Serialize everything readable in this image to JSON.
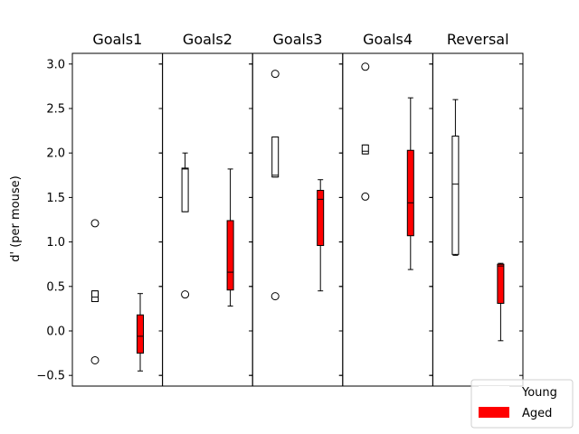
{
  "chart_data": {
    "type": "box",
    "ylabel": "d' (per mouse)",
    "ylim": [
      -0.62,
      3.12
    ],
    "yticks": [
      -0.5,
      0.0,
      0.5,
      1.0,
      1.5,
      2.0,
      2.5,
      3.0
    ],
    "ytick_labels": [
      "−0.5",
      "0.0",
      "0.5",
      "1.0",
      "1.5",
      "2.0",
      "2.5",
      "3.0"
    ],
    "legend": {
      "placement": "lower-right",
      "entries": [
        {
          "label": "Young",
          "color": "#ffffff"
        },
        {
          "label": "Aged",
          "color": "#ff0000"
        }
      ]
    },
    "panels": [
      {
        "title": "Goals1",
        "boxes": [
          {
            "group": "Young",
            "whislo": 0.33,
            "q1": 0.33,
            "med": 0.38,
            "q3": 0.45,
            "whishi": 0.45,
            "fliers": [
              1.21,
              -0.33
            ]
          },
          {
            "group": "Aged",
            "whislo": -0.45,
            "q1": -0.25,
            "med": -0.06,
            "q3": 0.18,
            "whishi": 0.42,
            "fliers": []
          }
        ]
      },
      {
        "title": "Goals2",
        "boxes": [
          {
            "group": "Young",
            "whislo": 1.34,
            "q1": 1.34,
            "med": 1.82,
            "q3": 1.83,
            "whishi": 2.0,
            "fliers": [
              0.41
            ]
          },
          {
            "group": "Aged",
            "whislo": 0.28,
            "q1": 0.46,
            "med": 0.66,
            "q3": 1.24,
            "whishi": 1.82,
            "fliers": []
          }
        ]
      },
      {
        "title": "Goals3",
        "boxes": [
          {
            "group": "Young",
            "whislo": 1.73,
            "q1": 1.73,
            "med": 1.75,
            "q3": 2.18,
            "whishi": 2.18,
            "fliers": [
              2.89,
              0.39
            ]
          },
          {
            "group": "Aged",
            "whislo": 0.45,
            "q1": 0.96,
            "med": 1.48,
            "q3": 1.58,
            "whishi": 1.7,
            "fliers": []
          }
        ]
      },
      {
        "title": "Goals4",
        "boxes": [
          {
            "group": "Young",
            "whislo": 1.99,
            "q1": 1.99,
            "med": 2.02,
            "q3": 2.09,
            "whishi": 2.09,
            "fliers": [
              2.97,
              1.51
            ]
          },
          {
            "group": "Aged",
            "whislo": 0.69,
            "q1": 1.07,
            "med": 1.44,
            "q3": 2.03,
            "whishi": 2.62,
            "fliers": []
          }
        ]
      },
      {
        "title": "Reversal",
        "boxes": [
          {
            "group": "Young",
            "whislo": 0.85,
            "q1": 0.86,
            "med": 1.65,
            "q3": 2.19,
            "whishi": 2.6,
            "fliers": []
          },
          {
            "group": "Aged",
            "whislo": -0.11,
            "q1": 0.31,
            "med": 0.73,
            "q3": 0.75,
            "whishi": 0.76,
            "fliers": []
          }
        ]
      }
    ]
  }
}
